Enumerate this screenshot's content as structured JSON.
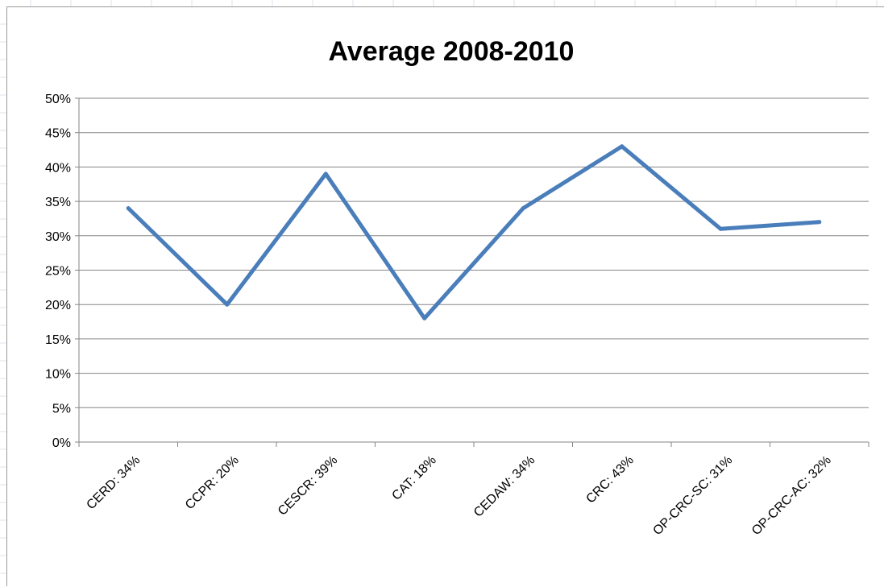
{
  "colors": {
    "series_line": "#4A7EBB",
    "gridline": "#868686",
    "axis": "#868686",
    "sheet_grid": "#dde3ec"
  },
  "chart_data": {
    "type": "line",
    "title": "Average 2008-2010",
    "xlabel": "",
    "ylabel": "",
    "categories": [
      "CERD: 34%",
      "CCPR: 20%",
      "CESCR: 39%",
      "CAT: 18%",
      "CEDAW: 34%",
      "CRC: 43%",
      "OP-CRC-SC: 31%",
      "OP-CRC-AC: 32%"
    ],
    "series": [
      {
        "values": [
          0.34,
          0.2,
          0.39,
          0.18,
          0.34,
          0.43,
          0.31,
          0.32
        ]
      }
    ],
    "ylim": [
      0,
      0.5
    ],
    "y_ticks": [
      0,
      0.05,
      0.1,
      0.15,
      0.2,
      0.25,
      0.3,
      0.35,
      0.4,
      0.45,
      0.5
    ],
    "y_tick_labels": [
      "0%",
      "5%",
      "10%",
      "15%",
      "20%",
      "25%",
      "30%",
      "35%",
      "40%",
      "45%",
      "50%"
    ],
    "grid": true,
    "legend": "none"
  }
}
